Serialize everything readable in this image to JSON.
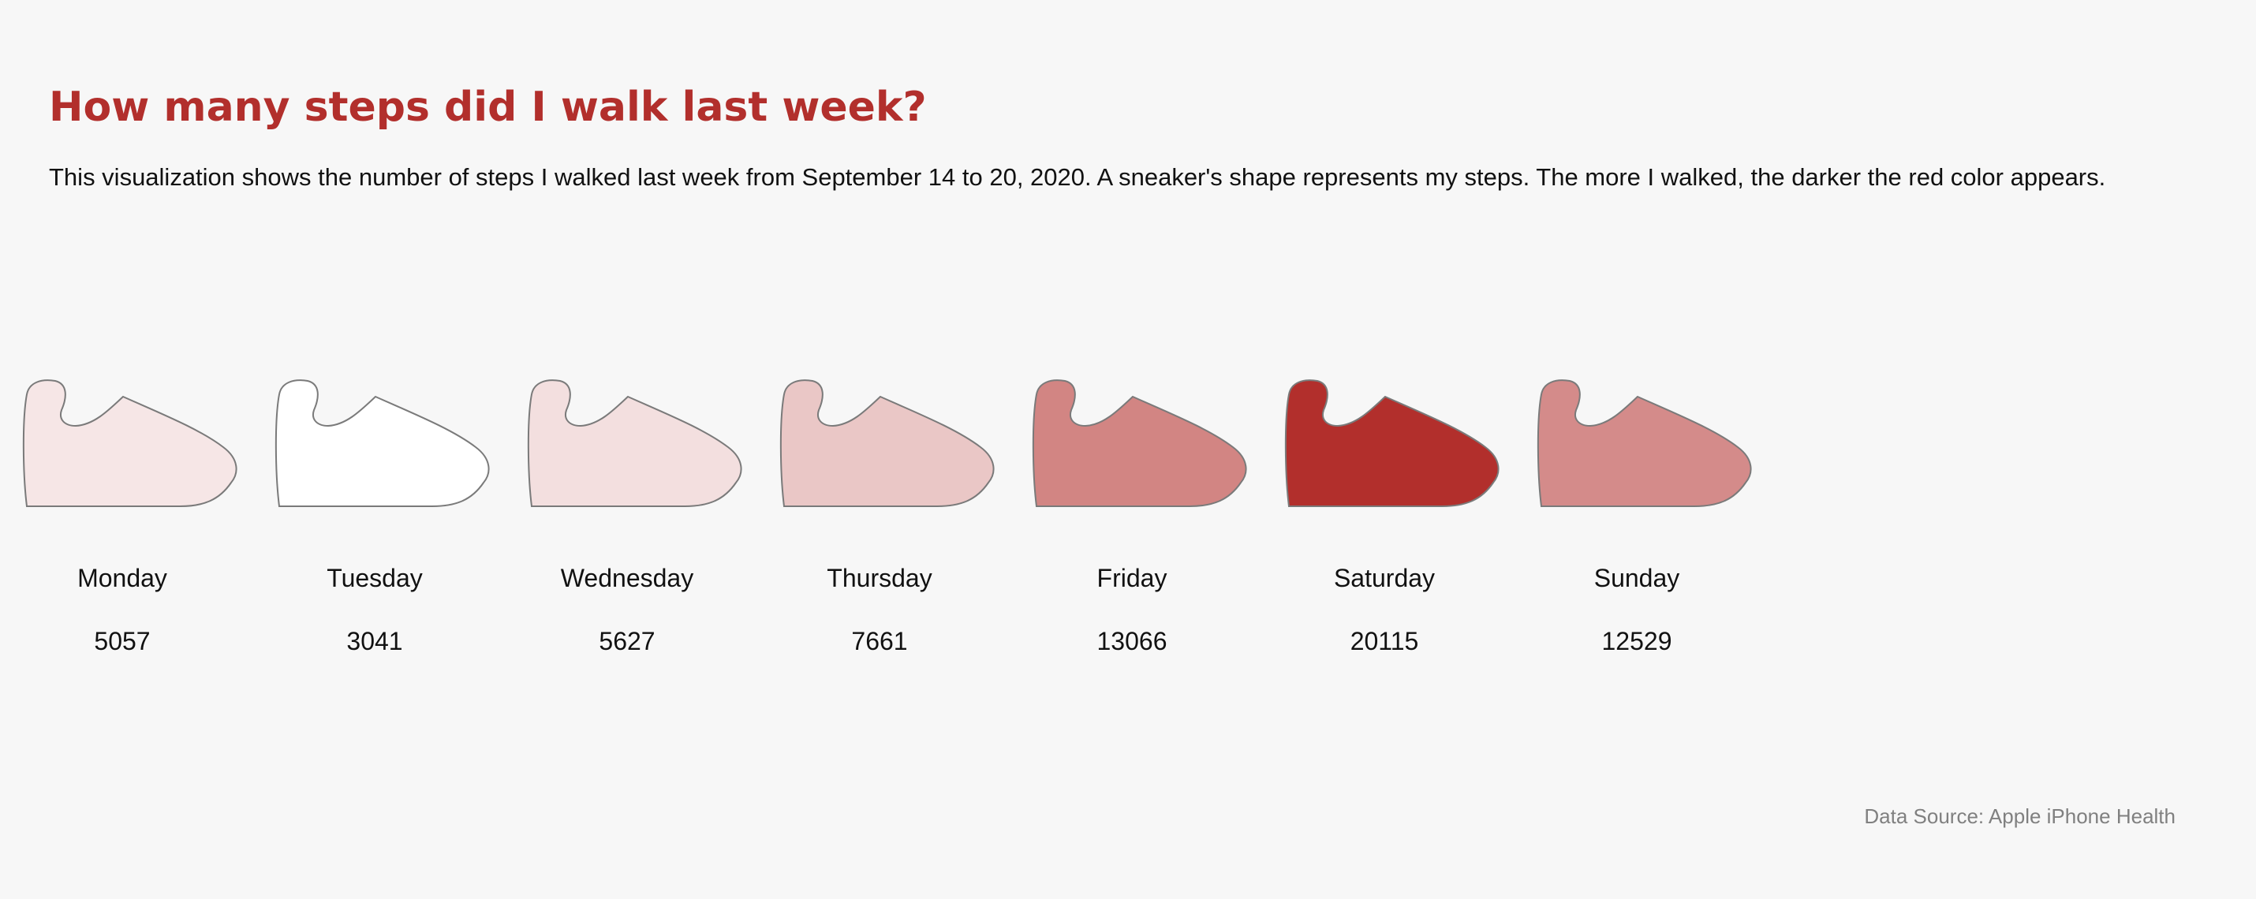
{
  "title": "How many steps did I walk last week?",
  "description": "This visualization shows the number of steps I walked last week from September 14 to 20, 2020. A sneaker's shape represents my steps. The more I walked, the darker the red color appears.",
  "source": "Data Source: Apple iPhone Health",
  "icon": "sneaker-icon",
  "colors": {
    "low": "#ffffff",
    "high": "#b22f2c",
    "stroke": "#7a7a7a",
    "title": "#b22f2c"
  },
  "chart_data": {
    "type": "pictogram",
    "title": "How many steps did I walk last week?",
    "categories": [
      "Monday",
      "Tuesday",
      "Wednesday",
      "Thursday",
      "Friday",
      "Saturday",
      "Sunday"
    ],
    "values": [
      5057,
      3041,
      5627,
      7661,
      13066,
      20115,
      12529
    ],
    "color_scale": "white-to-red, darker = more steps"
  }
}
